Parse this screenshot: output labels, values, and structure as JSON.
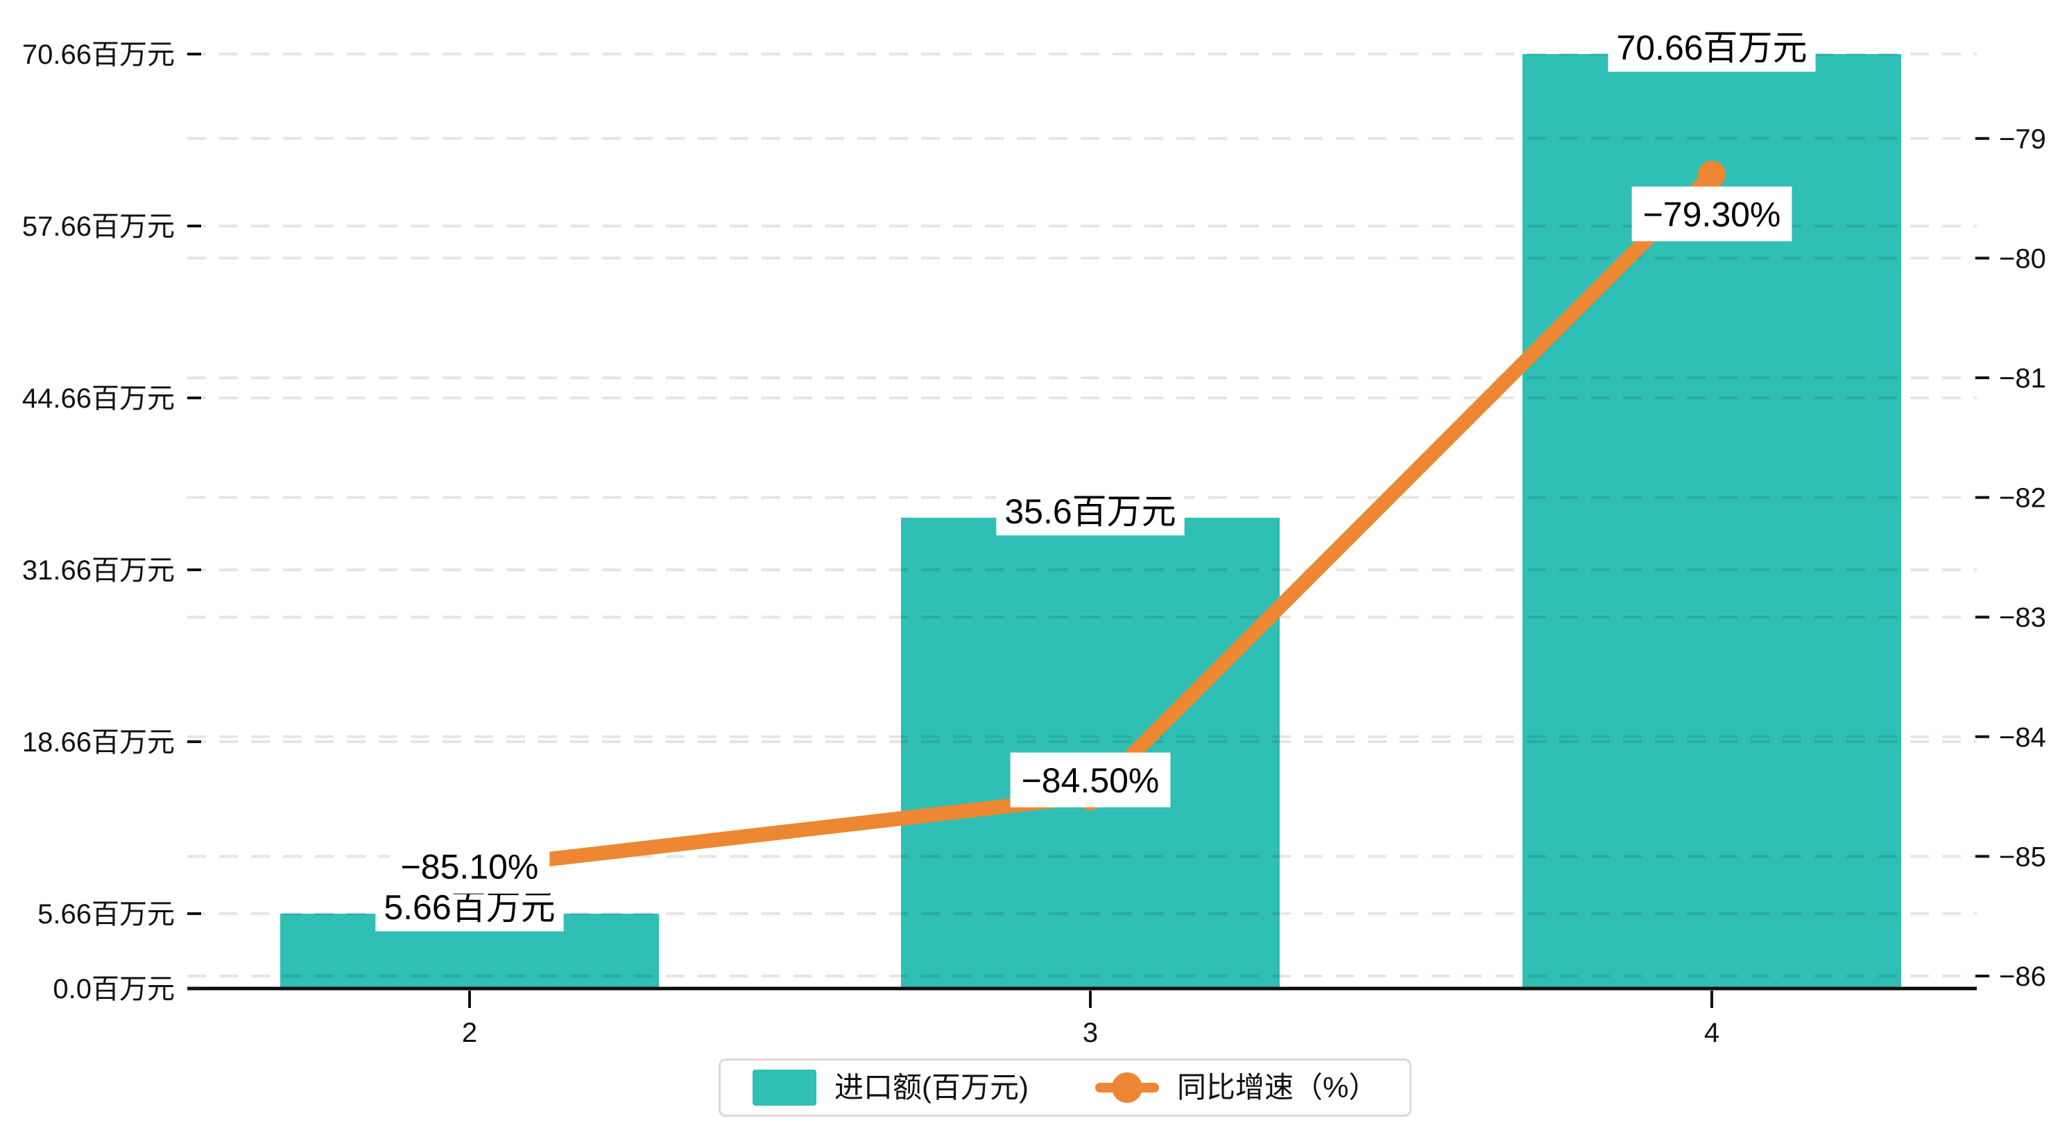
{
  "page": {
    "background": "#ffffff"
  },
  "chart_data": {
    "type": "combo",
    "categories": [
      "2",
      "3",
      "4"
    ],
    "series": [
      {
        "name": "进口额(百万元)",
        "type": "bar",
        "y_axis": "left",
        "color": "#2fbfb4",
        "values": [
          5.66,
          35.6,
          70.66
        ],
        "data_labels": [
          "5.66百万元",
          "35.6百万元",
          "70.66百万元"
        ]
      },
      {
        "name": "同比增速（%）",
        "type": "line",
        "y_axis": "right",
        "color": "#ed8733",
        "values": [
          -85.1,
          -84.5,
          -79.3
        ],
        "data_labels": [
          "−85.10%",
          "−84.50%",
          "−79.30%"
        ]
      }
    ],
    "x_axis": {
      "tick_labels": [
        "2",
        "3",
        "4"
      ]
    },
    "left_axis": {
      "min": 0,
      "max": 70.66,
      "unit": "百万元",
      "ticks": [
        0,
        5.66,
        18.66,
        31.66,
        44.66,
        57.66,
        70.66
      ],
      "tick_labels": [
        "0.0百万元",
        "5.66百万元",
        "18.66百万元",
        "31.66百万元",
        "44.66百万元",
        "57.66百万元",
        "70.66百万元"
      ]
    },
    "right_axis": {
      "min": -86,
      "max": -79,
      "ticks": [
        -79,
        -80,
        -81,
        -82,
        -83,
        -84,
        -85,
        -86
      ],
      "tick_labels": [
        "−79",
        "−80",
        "−81",
        "−82",
        "−83",
        "−84",
        "−85",
        "−86"
      ]
    },
    "legend": {
      "position": "bottom",
      "items": [
        {
          "label": "进口额(百万元)",
          "marker": "rect",
          "color": "#2fbfb4"
        },
        {
          "label": "同比增速（%）",
          "marker": "line-dot",
          "color": "#ed8733"
        }
      ]
    },
    "grid": {
      "show": true,
      "style": "dashed",
      "color": "rgba(0,0,0,0.10)"
    },
    "label_style": {
      "background": "#ffffff",
      "text_color": "#000000"
    },
    "axis_line_color": "#0a0a0a"
  }
}
